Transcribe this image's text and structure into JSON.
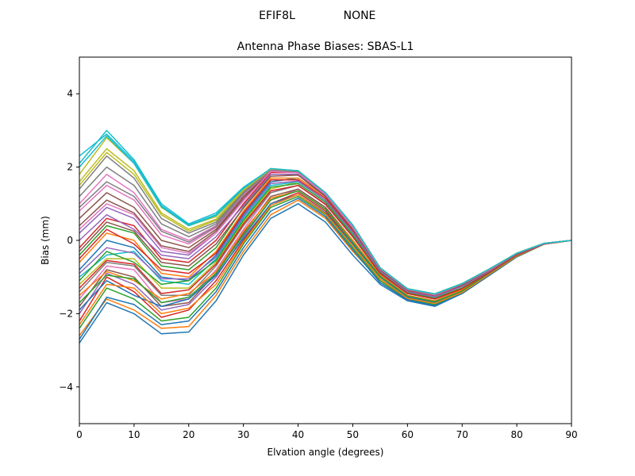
{
  "chart_data": {
    "type": "line",
    "suptitle": [
      "EFIF8L",
      "NONE"
    ],
    "title": "Antenna Phase Biases: SBAS-L1",
    "xlabel": "Elvation angle (degrees)",
    "ylabel": "Bias (mm)",
    "xlim": [
      0,
      90
    ],
    "ylim": [
      -5,
      5
    ],
    "xticks": [
      0,
      10,
      20,
      30,
      40,
      50,
      60,
      70,
      80,
      90
    ],
    "yticks": [
      -4,
      -2,
      0,
      2,
      4
    ],
    "xtick_labels": [
      "0",
      "10",
      "20",
      "30",
      "40",
      "50",
      "60",
      "70",
      "80",
      "90"
    ],
    "ytick_labels": [
      "−4",
      "−2",
      "0",
      "2",
      "4"
    ],
    "grid": false,
    "legend": false,
    "x": [
      0,
      5,
      10,
      15,
      20,
      25,
      30,
      35,
      40,
      45,
      50,
      55,
      60,
      65,
      70,
      75,
      80,
      85,
      90
    ],
    "color_cycle": [
      "#1f77b4",
      "#ff7f0e",
      "#2ca02c",
      "#d62728",
      "#9467bd",
      "#8c564b",
      "#e377c2",
      "#7f7f7f",
      "#bcbd22",
      "#17becf"
    ],
    "series": [
      {
        "values": [
          -2.8,
          -1.7,
          -2.0,
          -2.55,
          -2.5,
          -1.65,
          -0.4,
          0.6,
          1.0,
          0.5,
          -0.4,
          -1.2,
          -1.65,
          -1.8,
          -1.45,
          -0.95,
          -0.45,
          -0.1,
          0.0
        ]
      },
      {
        "values": [
          -2.6,
          -1.6,
          -1.9,
          -2.4,
          -2.35,
          -1.5,
          -0.3,
          0.7,
          1.1,
          0.6,
          -0.3,
          -1.1,
          -1.6,
          -1.75,
          -1.45,
          -0.95,
          -0.45,
          -0.1,
          0.0
        ]
      },
      {
        "values": [
          -2.4,
          -1.3,
          -1.6,
          -2.2,
          -2.1,
          -1.3,
          -0.1,
          0.9,
          1.2,
          0.7,
          -0.2,
          -1.1,
          -1.6,
          -1.75,
          -1.45,
          -0.95,
          -0.45,
          -0.1,
          0.0
        ]
      },
      {
        "values": [
          -2.2,
          -1.0,
          -1.4,
          -2.1,
          -1.9,
          -1.1,
          0.0,
          1.0,
          1.3,
          0.8,
          -0.1,
          -1.0,
          -1.55,
          -1.7,
          -1.4,
          -0.9,
          -0.42,
          -0.1,
          0.0
        ]
      },
      {
        "values": [
          -2.0,
          -0.9,
          -1.2,
          -1.9,
          -1.75,
          -1.0,
          0.1,
          1.1,
          1.4,
          0.9,
          0.0,
          -0.95,
          -1.5,
          -1.7,
          -1.4,
          -0.9,
          -0.42,
          -0.1,
          0.0
        ]
      },
      {
        "values": [
          -1.8,
          -0.8,
          -1.0,
          -1.8,
          -1.7,
          -0.9,
          0.2,
          1.2,
          1.4,
          0.9,
          0.0,
          -0.95,
          -1.5,
          -1.65,
          -1.35,
          -0.88,
          -0.4,
          -0.1,
          0.0
        ]
      },
      {
        "values": [
          -1.6,
          -0.7,
          -0.8,
          -1.7,
          -1.6,
          -0.8,
          0.3,
          1.3,
          1.5,
          1.0,
          0.1,
          -0.9,
          -1.45,
          -1.6,
          -1.35,
          -0.88,
          -0.4,
          -0.1,
          0.0
        ]
      },
      {
        "values": [
          -1.4,
          -0.6,
          -0.7,
          -1.5,
          -1.5,
          -0.7,
          0.4,
          1.3,
          1.5,
          1.0,
          0.1,
          -0.9,
          -1.45,
          -1.6,
          -1.3,
          -0.88,
          -0.4,
          -0.1,
          0.0
        ]
      },
      {
        "values": [
          -1.2,
          -0.5,
          -0.5,
          -1.3,
          -1.3,
          -0.6,
          0.5,
          1.4,
          1.6,
          1.1,
          0.2,
          -0.85,
          -1.4,
          -1.55,
          -1.3,
          -0.85,
          -0.4,
          -0.1,
          0.0
        ]
      },
      {
        "values": [
          -1.0,
          -0.4,
          -0.3,
          -1.1,
          -1.2,
          -0.5,
          0.6,
          1.5,
          1.6,
          1.1,
          0.2,
          -0.85,
          -1.4,
          -1.55,
          -1.25,
          -0.85,
          -0.38,
          -0.1,
          0.0
        ]
      },
      {
        "values": [
          -0.8,
          0.0,
          -0.2,
          -1.0,
          -1.1,
          -0.4,
          0.7,
          1.6,
          1.7,
          1.2,
          0.3,
          -0.8,
          -1.35,
          -1.5,
          -1.25,
          -0.82,
          -0.38,
          -0.1,
          0.0
        ]
      },
      {
        "values": [
          -0.6,
          0.2,
          0.0,
          -0.9,
          -1.0,
          -0.3,
          0.8,
          1.7,
          1.7,
          1.2,
          0.3,
          -0.8,
          -1.35,
          -1.5,
          -1.2,
          -0.82,
          -0.36,
          -0.08,
          0.0
        ]
      },
      {
        "values": [
          -0.4,
          0.4,
          0.2,
          -0.7,
          -0.8,
          -0.2,
          0.9,
          1.8,
          1.8,
          1.25,
          0.35,
          -0.78,
          -1.35,
          -1.5,
          -1.2,
          -0.8,
          -0.36,
          -0.08,
          0.0
        ]
      },
      {
        "values": [
          -0.2,
          0.6,
          0.4,
          -0.5,
          -0.6,
          0.0,
          1.0,
          1.85,
          1.85,
          1.25,
          0.35,
          -0.78,
          -1.35,
          -1.48,
          -1.2,
          -0.8,
          -0.36,
          -0.08,
          0.0
        ]
      },
      {
        "values": [
          0.2,
          0.9,
          0.6,
          -0.3,
          -0.4,
          0.2,
          1.1,
          1.9,
          1.85,
          1.3,
          0.4,
          -0.75,
          -1.33,
          -1.48,
          -1.18,
          -0.8,
          -0.35,
          -0.08,
          0.0
        ]
      },
      {
        "values": [
          0.6,
          1.3,
          0.9,
          0.0,
          -0.2,
          0.3,
          1.2,
          1.9,
          1.9,
          1.3,
          0.4,
          -0.75,
          -1.33,
          -1.48,
          -1.18,
          -0.78,
          -0.35,
          -0.08,
          0.0
        ]
      },
      {
        "values": [
          1.0,
          1.8,
          1.3,
          0.3,
          0.0,
          0.4,
          1.3,
          1.95,
          1.9,
          1.3,
          0.42,
          -0.75,
          -1.32,
          -1.48,
          -1.18,
          -0.78,
          -0.35,
          -0.08,
          0.0
        ]
      },
      {
        "values": [
          1.4,
          2.3,
          1.7,
          0.6,
          0.2,
          0.5,
          1.35,
          1.95,
          1.9,
          1.3,
          0.42,
          -0.75,
          -1.32,
          -1.46,
          -1.18,
          -0.78,
          -0.35,
          -0.08,
          0.0
        ]
      },
      {
        "values": [
          1.8,
          2.8,
          2.1,
          0.9,
          0.4,
          0.65,
          1.4,
          1.95,
          1.9,
          1.3,
          0.42,
          -0.75,
          -1.32,
          -1.46,
          -1.18,
          -0.78,
          -0.35,
          -0.08,
          0.0
        ]
      },
      {
        "values": [
          2.1,
          3.0,
          2.2,
          1.0,
          0.45,
          0.75,
          1.45,
          1.95,
          1.9,
          1.3,
          0.42,
          -0.75,
          -1.32,
          -1.46,
          -1.18,
          -0.78,
          -0.35,
          -0.08,
          0.0
        ]
      },
      {
        "values": [
          -1.9,
          -1.1,
          -1.5,
          -1.8,
          -1.6,
          -0.95,
          0.05,
          1.0,
          1.25,
          0.75,
          -0.1,
          -1.0,
          -1.55,
          -1.7,
          -1.4,
          -0.9,
          -0.42,
          -0.1,
          0.0
        ]
      },
      {
        "values": [
          -1.5,
          -0.85,
          -1.1,
          -1.6,
          -1.45,
          -0.85,
          0.25,
          1.15,
          1.35,
          0.85,
          0.0,
          -0.95,
          -1.5,
          -1.65,
          -1.35,
          -0.88,
          -0.4,
          -0.1,
          0.0
        ]
      },
      {
        "values": [
          -1.1,
          -0.3,
          -0.6,
          -1.2,
          -1.1,
          -0.55,
          0.55,
          1.45,
          1.55,
          1.05,
          0.15,
          -0.88,
          -1.42,
          -1.58,
          -1.3,
          -0.86,
          -0.39,
          -0.1,
          0.0
        ]
      },
      {
        "values": [
          -0.5,
          0.3,
          -0.1,
          -0.8,
          -0.9,
          -0.35,
          0.75,
          1.65,
          1.65,
          1.15,
          0.25,
          -0.82,
          -1.38,
          -1.52,
          -1.25,
          -0.83,
          -0.37,
          -0.09,
          0.0
        ]
      },
      {
        "values": [
          0.0,
          0.7,
          0.3,
          -0.4,
          -0.5,
          0.1,
          0.95,
          1.8,
          1.8,
          1.22,
          0.32,
          -0.79,
          -1.35,
          -1.5,
          -1.2,
          -0.81,
          -0.36,
          -0.08,
          0.0
        ]
      },
      {
        "values": [
          0.4,
          1.1,
          0.75,
          -0.15,
          -0.3,
          0.25,
          1.15,
          1.9,
          1.85,
          1.28,
          0.38,
          -0.76,
          -1.33,
          -1.48,
          -1.19,
          -0.79,
          -0.35,
          -0.08,
          0.0
        ]
      },
      {
        "values": [
          0.8,
          1.5,
          1.1,
          0.15,
          -0.1,
          0.35,
          1.25,
          1.92,
          1.88,
          1.3,
          0.4,
          -0.75,
          -1.33,
          -1.48,
          -1.18,
          -0.78,
          -0.35,
          -0.08,
          0.0
        ]
      },
      {
        "values": [
          1.2,
          2.0,
          1.5,
          0.45,
          0.1,
          0.45,
          1.32,
          1.94,
          1.9,
          1.3,
          0.42,
          -0.75,
          -1.32,
          -1.47,
          -1.18,
          -0.78,
          -0.35,
          -0.08,
          0.0
        ]
      },
      {
        "values": [
          1.6,
          2.5,
          1.9,
          0.75,
          0.3,
          0.58,
          1.38,
          1.95,
          1.9,
          1.3,
          0.42,
          -0.75,
          -1.32,
          -1.46,
          -1.18,
          -0.78,
          -0.35,
          -0.08,
          0.0
        ]
      },
      {
        "values": [
          2.3,
          2.9,
          2.15,
          0.95,
          0.42,
          0.7,
          1.42,
          1.95,
          1.9,
          1.3,
          0.42,
          -0.75,
          -1.32,
          -1.46,
          -1.18,
          -0.78,
          -0.35,
          -0.08,
          0.0
        ]
      },
      {
        "values": [
          -2.7,
          -1.55,
          -1.75,
          -2.3,
          -2.2,
          -1.4,
          -0.2,
          0.8,
          1.15,
          0.65,
          -0.25,
          -1.15,
          -1.62,
          -1.78,
          -1.45,
          -0.95,
          -0.45,
          -0.1,
          0.0
        ]
      },
      {
        "values": [
          -2.3,
          -1.2,
          -1.3,
          -2.0,
          -1.85,
          -1.2,
          -0.05,
          0.95,
          1.25,
          0.72,
          -0.15,
          -1.05,
          -1.58,
          -1.72,
          -1.42,
          -0.92,
          -0.43,
          -0.1,
          0.0
        ]
      },
      {
        "values": [
          -1.7,
          -0.95,
          -1.05,
          -1.7,
          -1.55,
          -0.9,
          0.15,
          1.1,
          1.35,
          0.85,
          -0.05,
          -0.98,
          -1.52,
          -1.67,
          -1.38,
          -0.89,
          -0.41,
          -0.1,
          0.0
        ]
      },
      {
        "values": [
          -1.3,
          -0.55,
          -0.65,
          -1.45,
          -1.35,
          -0.65,
          0.45,
          1.35,
          1.5,
          0.98,
          0.1,
          -0.9,
          -1.45,
          -1.6,
          -1.32,
          -0.87,
          -0.4,
          -0.1,
          0.0
        ]
      },
      {
        "values": [
          -0.9,
          -0.2,
          -0.35,
          -1.05,
          -1.05,
          -0.45,
          0.65,
          1.55,
          1.62,
          1.1,
          0.22,
          -0.84,
          -1.4,
          -1.54,
          -1.26,
          -0.84,
          -0.38,
          -0.09,
          0.0
        ]
      },
      {
        "values": [
          -0.3,
          0.5,
          0.25,
          -0.6,
          -0.7,
          -0.1,
          0.88,
          1.75,
          1.78,
          1.2,
          0.3,
          -0.8,
          -1.36,
          -1.5,
          -1.22,
          -0.82,
          -0.37,
          -0.08,
          0.0
        ]
      },
      {
        "values": [
          0.3,
          1.0,
          0.7,
          -0.2,
          -0.35,
          0.2,
          1.08,
          1.88,
          1.84,
          1.26,
          0.36,
          -0.77,
          -1.34,
          -1.49,
          -1.19,
          -0.8,
          -0.35,
          -0.08,
          0.0
        ]
      },
      {
        "values": [
          0.9,
          1.6,
          1.2,
          0.25,
          -0.05,
          0.38,
          1.28,
          1.93,
          1.88,
          1.3,
          0.41,
          -0.75,
          -1.33,
          -1.47,
          -1.18,
          -0.78,
          -0.35,
          -0.08,
          0.0
        ]
      },
      {
        "values": [
          1.5,
          2.4,
          1.8,
          0.7,
          0.25,
          0.55,
          1.36,
          1.95,
          1.9,
          1.3,
          0.42,
          -0.75,
          -1.32,
          -1.46,
          -1.18,
          -0.78,
          -0.35,
          -0.08,
          0.0
        ]
      },
      {
        "values": [
          2.0,
          2.85,
          2.1,
          0.92,
          0.4,
          0.68,
          1.42,
          1.96,
          1.9,
          1.3,
          0.42,
          -0.75,
          -1.32,
          -1.46,
          -1.18,
          -0.78,
          -0.35,
          -0.08,
          0.0
        ]
      }
    ]
  }
}
